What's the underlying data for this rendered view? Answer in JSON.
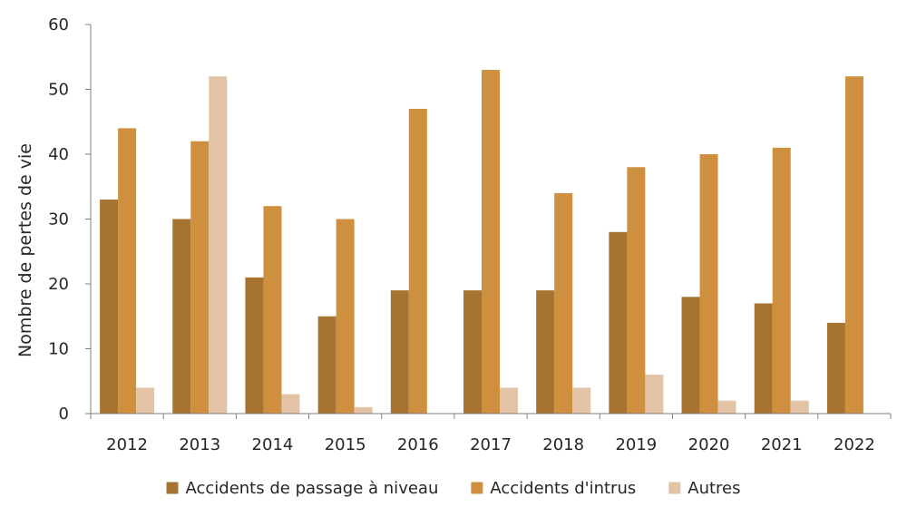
{
  "chart_data": {
    "type": "bar",
    "title": "",
    "xlabel": "",
    "ylabel": "Nombre de pertes de vie",
    "ylim": [
      0,
      60
    ],
    "yticks": [
      0,
      10,
      20,
      30,
      40,
      50,
      60
    ],
    "grid": false,
    "legend_position": "bottom",
    "categories": [
      "2012",
      "2013",
      "2014",
      "2015",
      "2016",
      "2017",
      "2018",
      "2019",
      "2020",
      "2021",
      "2022"
    ],
    "series": [
      {
        "name": "Accidents de passage à niveau",
        "color": "#A67330",
        "values": [
          33,
          30,
          21,
          15,
          19,
          19,
          19,
          28,
          18,
          17,
          14
        ]
      },
      {
        "name": "Accidents d'intrus",
        "color": "#CE8F3F",
        "values": [
          44,
          42,
          32,
          30,
          47,
          53,
          34,
          38,
          40,
          41,
          52
        ]
      },
      {
        "name": "Autres",
        "color": "#E2C3A6",
        "values": [
          4,
          52,
          3,
          1,
          0,
          4,
          4,
          6,
          2,
          2,
          0
        ]
      }
    ]
  }
}
